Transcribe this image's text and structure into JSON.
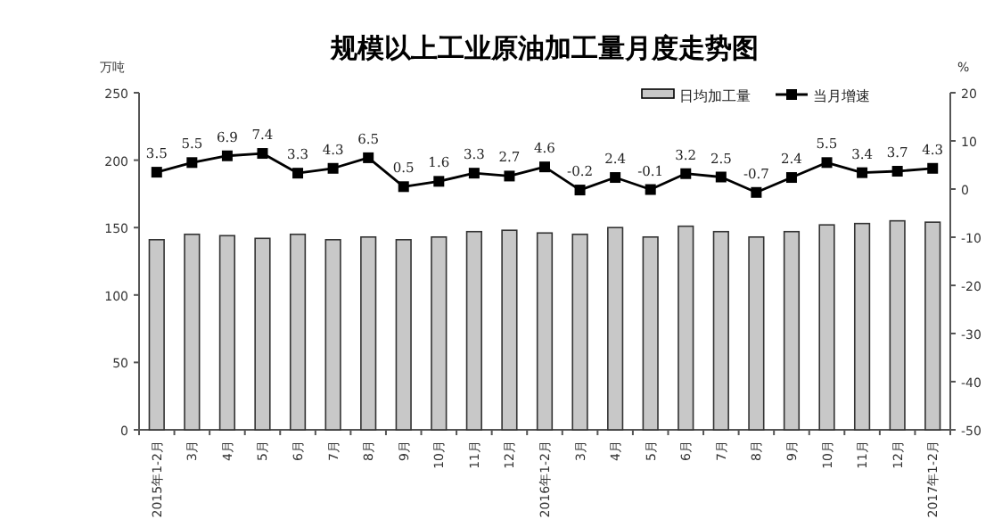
{
  "chart_data": {
    "type": "bar",
    "title": "规模以上工业原油加工量月度走势图",
    "ylabel": "万吨",
    "y2label": "%",
    "categories": [
      "2015年1-2月",
      "3月",
      "4月",
      "5月",
      "6月",
      "7月",
      "8月",
      "9月",
      "10月",
      "11月",
      "12月",
      "2016年1-2月",
      "3月",
      "4月",
      "5月",
      "6月",
      "7月",
      "8月",
      "9月",
      "10月",
      "11月",
      "12月",
      "2017年1-2月"
    ],
    "series": [
      {
        "name": "日均加工量",
        "color": "#c8c8c8",
        "values": [
          141,
          145,
          144,
          142,
          145,
          141,
          143,
          141,
          143,
          147,
          148,
          146,
          145,
          150,
          143,
          151,
          147,
          143,
          147,
          152,
          153,
          155,
          154
        ]
      },
      {
        "name": "当月增速",
        "type": "line",
        "axis": "y2",
        "color": "#000000",
        "marker": "square",
        "values": [
          3.5,
          5.5,
          6.9,
          7.4,
          3.3,
          4.3,
          6.5,
          0.5,
          1.6,
          3.3,
          2.7,
          4.6,
          -0.2,
          2.4,
          -0.1,
          3.2,
          2.5,
          -0.7,
          2.4,
          5.5,
          3.4,
          3.7,
          4.3
        ],
        "value_labels": [
          "3.5",
          "5.5",
          "6.9",
          "7.4",
          "3.3",
          "4.3",
          "6.5",
          "0.5",
          "1.6",
          "3.3",
          "2.7",
          "4.6",
          "-0.2",
          "2.4",
          "-0.1",
          "3.2",
          "2.5",
          "-0.7",
          "2.4",
          "5.5",
          "3.4",
          "3.7",
          "4.3"
        ]
      }
    ],
    "ylim": [
      0,
      250
    ],
    "yticks": [
      0,
      50,
      100,
      150,
      200,
      250
    ],
    "y2lim": [
      -50,
      20
    ],
    "y2ticks": [
      -50,
      -40,
      -30,
      -20,
      -10,
      0,
      10,
      20
    ],
    "legend": "top right"
  }
}
